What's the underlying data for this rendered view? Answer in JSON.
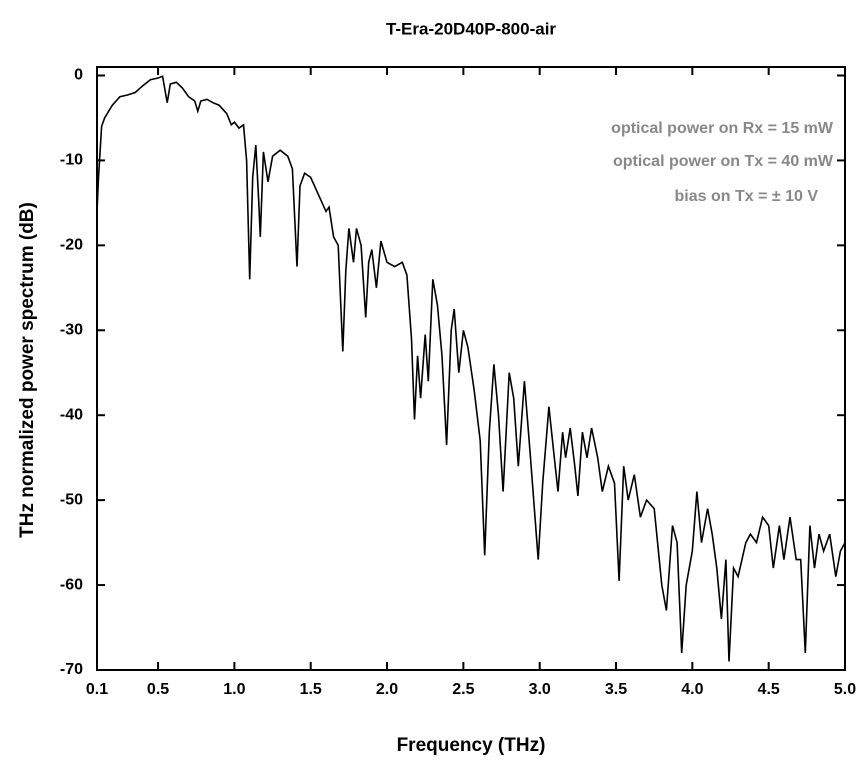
{
  "chart_data": {
    "type": "line",
    "title": "T-Era-20D40P-800-air",
    "x_label": "Frequency (THz)",
    "y_label": "THz normalized power spectrum (dB)",
    "annotations": [
      "optical power on Rx = 15 mW",
      "optical power on Tx = 40 mW",
      "bias on Tx = ± 10 V"
    ],
    "xlim": [
      0.1,
      5.0
    ],
    "ylim": [
      -70,
      1
    ],
    "xticks": [
      0.1,
      0.5,
      {
        "value": 1,
        "label": "1.0"
      },
      1.5,
      {
        "value": 2,
        "label": "2.0"
      },
      2.5,
      {
        "value": 3,
        "label": "3.0"
      },
      3.5,
      {
        "value": 4,
        "label": "4.0"
      },
      4.5,
      {
        "value": 5,
        "label": "5.0"
      }
    ],
    "yticks": [
      0,
      -10,
      -20,
      -30,
      -40,
      -50,
      -60,
      -70
    ],
    "series": [
      {
        "color": "#000000",
        "x": [
          0.1,
          0.11,
          0.13,
          0.15,
          0.2,
          0.25,
          0.3,
          0.35,
          0.4,
          0.45,
          0.5,
          0.53,
          0.56,
          0.58,
          0.62,
          0.66,
          0.7,
          0.74,
          0.76,
          0.78,
          0.82,
          0.86,
          0.9,
          0.95,
          0.98,
          1.0,
          1.03,
          1.06,
          1.08,
          1.1,
          1.12,
          1.14,
          1.16,
          1.17,
          1.19,
          1.22,
          1.25,
          1.3,
          1.35,
          1.38,
          1.41,
          1.43,
          1.46,
          1.5,
          1.55,
          1.6,
          1.62,
          1.65,
          1.68,
          1.71,
          1.73,
          1.75,
          1.78,
          1.8,
          1.83,
          1.86,
          1.88,
          1.9,
          1.93,
          1.96,
          2.0,
          2.05,
          2.1,
          2.13,
          2.16,
          2.18,
          2.2,
          2.22,
          2.25,
          2.27,
          2.3,
          2.33,
          2.36,
          2.39,
          2.42,
          2.44,
          2.47,
          2.5,
          2.53,
          2.57,
          2.61,
          2.64,
          2.67,
          2.7,
          2.73,
          2.76,
          2.8,
          2.83,
          2.86,
          2.9,
          2.94,
          2.99,
          3.02,
          3.06,
          3.09,
          3.12,
          3.15,
          3.17,
          3.2,
          3.23,
          3.25,
          3.28,
          3.31,
          3.34,
          3.38,
          3.41,
          3.45,
          3.49,
          3.52,
          3.55,
          3.58,
          3.62,
          3.66,
          3.7,
          3.75,
          3.8,
          3.83,
          3.87,
          3.9,
          3.93,
          3.96,
          4.0,
          4.03,
          4.06,
          4.1,
          4.13,
          4.16,
          4.19,
          4.22,
          4.24,
          4.27,
          4.3,
          4.35,
          4.38,
          4.42,
          4.46,
          4.5,
          4.53,
          4.57,
          4.6,
          4.64,
          4.68,
          4.71,
          4.74,
          4.77,
          4.8,
          4.83,
          4.86,
          4.9,
          4.94,
          4.97,
          5.0
        ],
        "values": [
          -16,
          -12,
          -6,
          -5,
          -3.5,
          -2.5,
          -2.3,
          -2,
          -1.2,
          -0.5,
          -0.3,
          -0.1,
          -3.2,
          -1,
          -0.8,
          -1.5,
          -2.5,
          -3,
          -4.2,
          -3,
          -2.8,
          -3.2,
          -3.5,
          -4.5,
          -5.8,
          -5.5,
          -6.2,
          -5.8,
          -10,
          -24,
          -12,
          -8.2,
          -15,
          -19,
          -9,
          -12.5,
          -9.5,
          -8.8,
          -9.5,
          -11,
          -22.5,
          -13,
          -11.5,
          -12,
          -14,
          -16,
          -15.5,
          -19,
          -20,
          -32.5,
          -23,
          -18,
          -22,
          -18,
          -20,
          -28.5,
          -22,
          -20.5,
          -25,
          -19.5,
          -22,
          -22.5,
          -22,
          -23.5,
          -31,
          -40.5,
          -33,
          -38,
          -30.5,
          -36,
          -24,
          -27,
          -33,
          -43.5,
          -30,
          -27.5,
          -35,
          -30,
          -32,
          -37,
          -43,
          -56.5,
          -42,
          -34,
          -40,
          -49,
          -35,
          -38,
          -46,
          -36,
          -45,
          -57,
          -48,
          -39,
          -44,
          -49,
          -42,
          -45,
          -41.5,
          -46,
          -49.5,
          -42,
          -45,
          -41.5,
          -45,
          -49,
          -46,
          -48,
          -59.5,
          -46,
          -50,
          -47,
          -52,
          -50,
          -51,
          -60,
          -63,
          -53,
          -55,
          -68,
          -60,
          -56,
          -49,
          -55,
          -51,
          -54,
          -58,
          -64,
          -57,
          -69,
          -58,
          -59,
          -55,
          -54,
          -55,
          -52,
          -53,
          -58,
          -53,
          -57,
          -52,
          -57,
          -57,
          -68,
          -53,
          -58,
          -54,
          -56,
          -54,
          -59,
          -56,
          -55
        ]
      }
    ]
  }
}
